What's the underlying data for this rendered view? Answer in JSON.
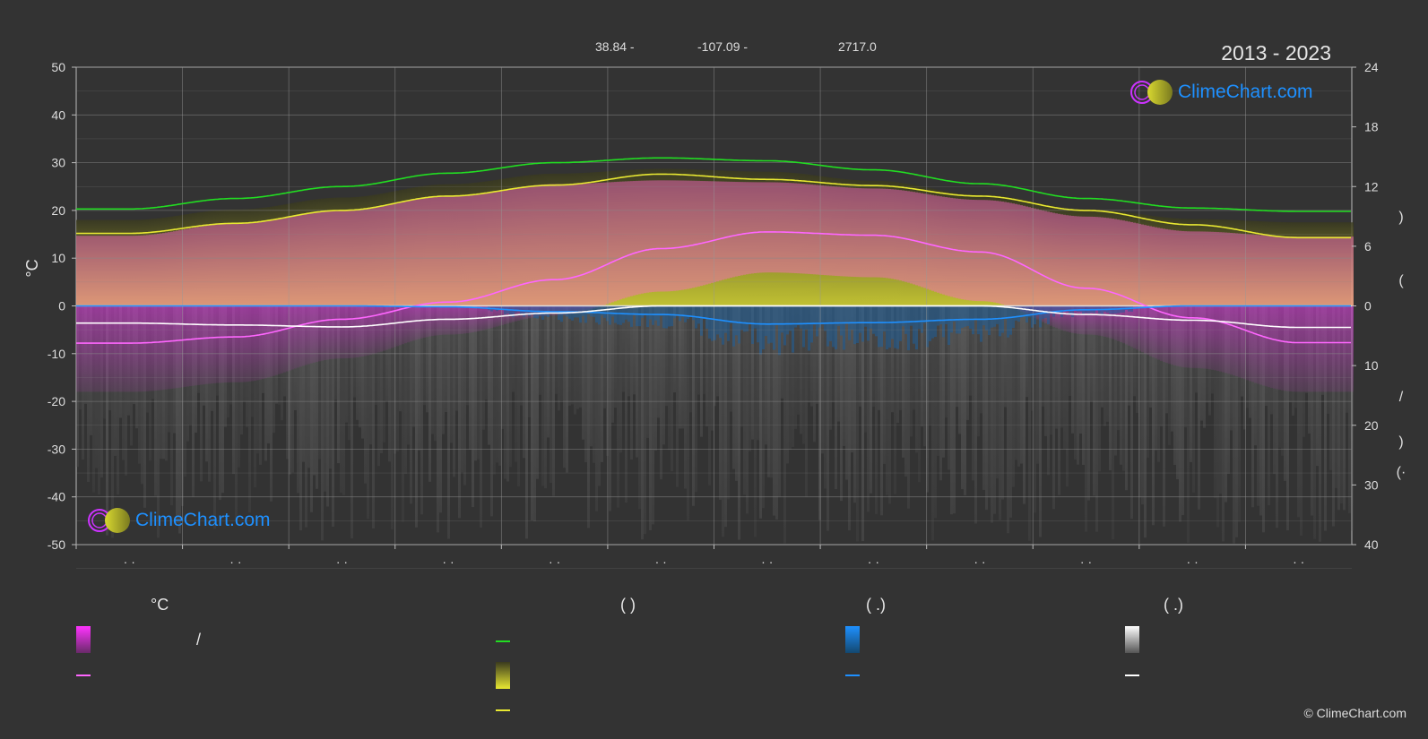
{
  "header": {
    "lat": "38.84 -",
    "lon": "-107.09 -",
    "elev": "2717.0",
    "period": "2013 - 2023"
  },
  "logo": {
    "text": "ClimeChart.com"
  },
  "copyright": "© ClimeChart.com",
  "legend": {
    "col1_title": "°C",
    "col1_slash": "/",
    "col2_title": "(            )",
    "col3_title": "(    .)",
    "col4_title": "(    .)"
  },
  "colors": {
    "background": "#333333",
    "daylight": "#22dd22",
    "sunshine": "#e8e832",
    "temp_mean": "#ff66ff",
    "rain": "#1e90ff",
    "snow": "#ffffff"
  },
  "chart_data": {
    "type": "line",
    "x": [
      1,
      2,
      3,
      4,
      5,
      6,
      7,
      8,
      9,
      10,
      11,
      12
    ],
    "x_tick_labels": [
      "· ·",
      "· ·",
      "· ·",
      "· ·",
      "· ·",
      "· ·",
      "· ·",
      "· ·",
      "· ·",
      "· ·",
      "· ·",
      "· ·"
    ],
    "ylabel": "°C",
    "ylim": [
      -50,
      50
    ],
    "yticks": [
      50,
      40,
      30,
      20,
      10,
      0,
      -10,
      -20,
      -30,
      -40,
      -50
    ],
    "y2_top_ticks": [
      24,
      18,
      12,
      6,
      0
    ],
    "y2_bottom_ticks": [
      10,
      20,
      30,
      40
    ],
    "y2_side_labels": [
      ")",
      "(",
      "/",
      ")",
      "(·"
    ],
    "grid": true,
    "series": [
      {
        "key": "daylight",
        "values": [
          20.3,
          22.5,
          25.0,
          27.8,
          30.0,
          31.0,
          30.4,
          28.5,
          25.6,
          22.5,
          20.5,
          19.8
        ]
      },
      {
        "key": "sunshine",
        "values": [
          15.2,
          17.3,
          20.0,
          23.0,
          25.3,
          27.6,
          26.5,
          25.2,
          23.0,
          20.0,
          17.0,
          14.3
        ]
      },
      {
        "key": "temp_mean",
        "values": [
          -7.8,
          -6.5,
          -2.8,
          0.8,
          5.5,
          12.0,
          15.5,
          14.8,
          11.3,
          3.7,
          -2.5,
          -7.7
        ]
      },
      {
        "key": "rain",
        "values": [
          0,
          0,
          0,
          -0.2,
          -1.2,
          -1.8,
          -3.8,
          -3.5,
          -2.8,
          -0.8,
          0,
          0
        ]
      },
      {
        "key": "snow",
        "values": [
          -3.6,
          -4.0,
          -4.4,
          -2.8,
          -1.5,
          0,
          0,
          0,
          0,
          -1.8,
          -3.0,
          -4.5
        ]
      }
    ],
    "band": {
      "temp_max": [
        17.7,
        20.3,
        23.0,
        26.0,
        28.5,
        29.3,
        28.9,
        27.6,
        25.2,
        21.7,
        18.6,
        17.5
      ],
      "temp_min": [
        -18,
        -16,
        -11,
        -6,
        -2,
        3,
        7,
        6,
        1,
        -6,
        -13,
        -18
      ]
    }
  }
}
